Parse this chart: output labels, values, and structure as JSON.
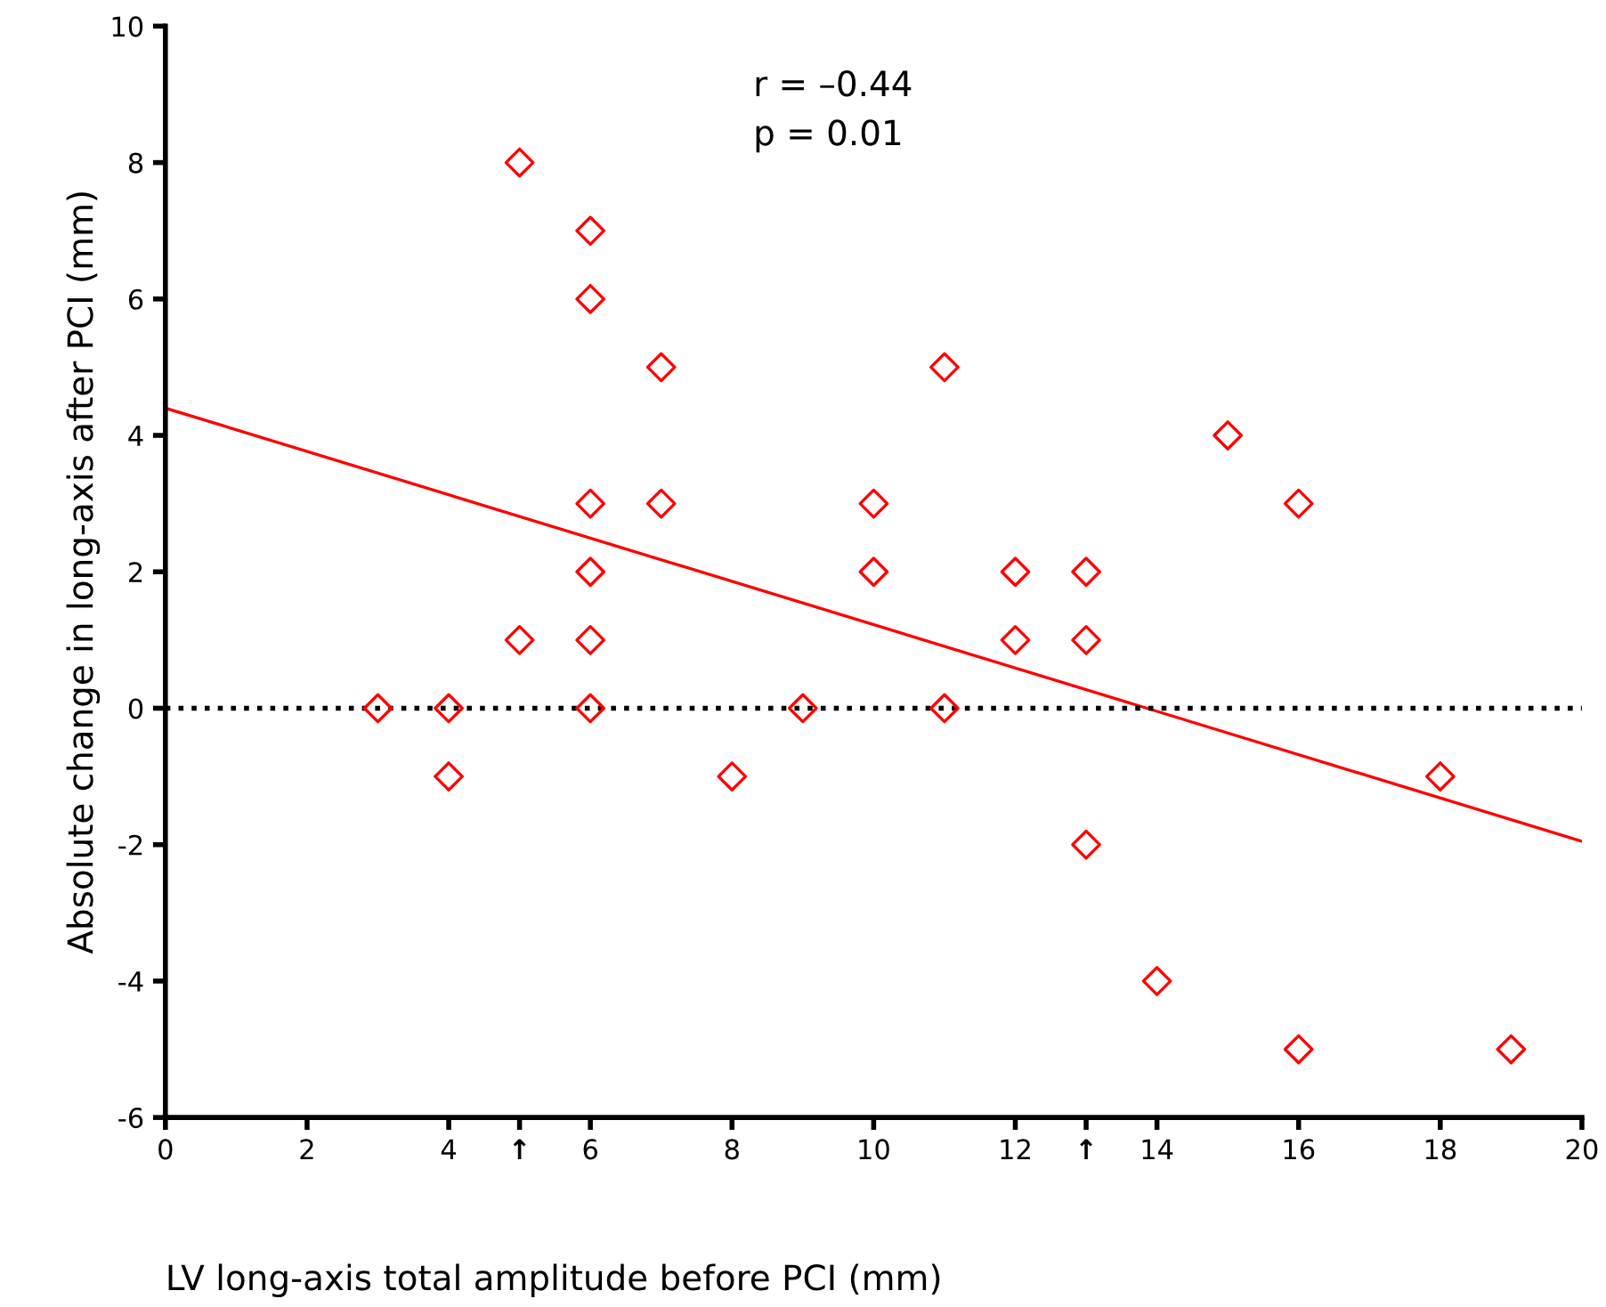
{
  "chart_data": {
    "type": "scatter",
    "xlabel": "LV long-axis total amplitude before PCI (mm)",
    "ylabel": "Absolute change in long-axis after PCI (mm)",
    "xlim": [
      0,
      20
    ],
    "xticks": [
      0,
      2,
      4,
      {
        "value": 5,
        "label": "↑"
      },
      6,
      8,
      10,
      12,
      {
        "value": 13,
        "label": "↑"
      },
      14,
      16,
      18,
      20
    ],
    "ylim": [
      -6,
      10
    ],
    "yticks": [
      -6,
      -4,
      -2,
      0,
      2,
      4,
      6,
      8,
      10
    ],
    "grid": false,
    "legend": false,
    "series": [
      {
        "color": "#ff0000",
        "marker": "diamond",
        "x": [
          3,
          4,
          4,
          5,
          5,
          6,
          6,
          6,
          6,
          6,
          6,
          7,
          7,
          8,
          9,
          10,
          10,
          11,
          11,
          12,
          12,
          13,
          13,
          13,
          14,
          15,
          16,
          16,
          18,
          19
        ],
        "values": [
          0,
          0,
          -1,
          8,
          1,
          7,
          6,
          3,
          2,
          1,
          0,
          5,
          3,
          -1,
          0,
          3,
          2,
          5,
          0,
          2,
          1,
          2,
          1,
          -2,
          -4,
          4,
          3,
          -5,
          -1,
          -5
        ]
      },
      {
        "type": "line",
        "color": "#ff0000",
        "x": [
          0,
          20
        ],
        "values": [
          4.4,
          -1.95
        ]
      }
    ],
    "ref_lines": [
      {
        "axis": "y",
        "value": 0,
        "color": "#000000",
        "line_style": "dotted"
      }
    ],
    "annotations": [
      "r = –0.44",
      "p = 0.01"
    ]
  }
}
